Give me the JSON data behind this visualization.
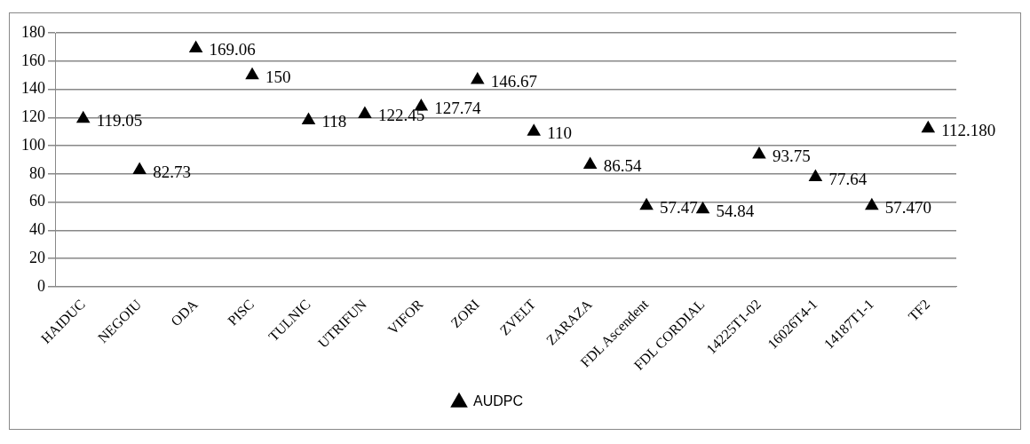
{
  "chart_data": {
    "type": "scatter",
    "categories": [
      "HAIDUC",
      "NEGOIU",
      "ODA",
      "PISC",
      "TULNIC",
      "UTRIFUN",
      "VIFOR",
      "ZORI",
      "ZVELT",
      "ZARAZA",
      "FDL Ascendent",
      "FDL CORDIAL",
      "14225T1-02",
      "16026T4-1",
      "14187T1-1",
      "TF2"
    ],
    "series": [
      {
        "name": "AUDPC",
        "color": "#000000",
        "values": [
          119.05,
          82.73,
          169.06,
          150,
          118,
          122.45,
          127.74,
          146.67,
          110,
          86.54,
          57.47,
          54.84,
          93.75,
          77.64,
          57.47,
          112.18
        ],
        "value_labels": [
          "119.05",
          "82.73",
          "169.06",
          "150",
          "118",
          "122.45",
          "127.74",
          "146.67",
          "110",
          "86.54",
          "57.47",
          "54.84",
          "93.75",
          "77.64",
          "57.470",
          "112.180"
        ]
      }
    ],
    "ylim": [
      0,
      180
    ],
    "yticks": [
      0,
      20,
      40,
      60,
      80,
      100,
      120,
      140,
      160,
      180
    ],
    "grid": "y",
    "legend": "bottom",
    "marker": "triangle"
  }
}
